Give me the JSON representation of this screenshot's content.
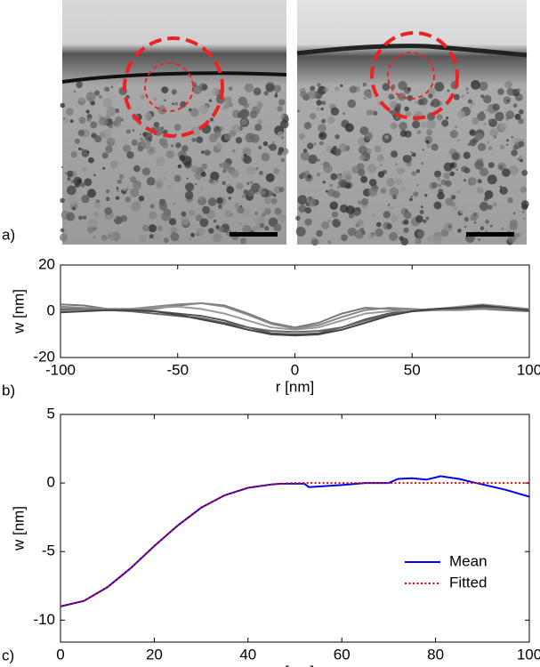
{
  "panel_labels": [
    "a)",
    "b)",
    "c)"
  ],
  "chart_data": [
    {
      "type": "line",
      "xlabel": "r [nm]",
      "ylabel": "w [nm]",
      "xlim": [
        -100,
        100
      ],
      "xticks": [
        -100,
        -50,
        0,
        50,
        100
      ],
      "ylim": [
        -20,
        20
      ],
      "yticks": [
        -20,
        0,
        20
      ],
      "x": [
        -100,
        -90,
        -80,
        -70,
        -60,
        -50,
        -40,
        -30,
        -20,
        -10,
        0,
        10,
        20,
        30,
        40,
        50,
        60,
        70,
        80,
        90,
        100
      ],
      "series": [
        {
          "color": "#777777",
          "values": [
            3,
            2.5,
            1,
            0.5,
            1,
            2.5,
            3.5,
            2.5,
            -1,
            -5,
            -7,
            -5,
            -1,
            1.5,
            1,
            0,
            0.5,
            1,
            1.5,
            1.5,
            1
          ]
        },
        {
          "color": "#555555",
          "values": [
            0.5,
            0.5,
            0.5,
            0.5,
            0,
            -1,
            -2,
            -4,
            -7,
            -9.5,
            -10,
            -9.5,
            -7,
            -3.5,
            -1,
            0.5,
            1,
            1.5,
            2,
            1.5,
            0.5
          ]
        },
        {
          "color": "#999999",
          "values": [
            0,
            0.5,
            1,
            1,
            1.5,
            2,
            1,
            -1,
            -4,
            -7,
            -8,
            -7,
            -4,
            -1,
            0,
            0.5,
            1,
            2,
            3,
            2,
            1
          ]
        },
        {
          "color": "#666666",
          "values": [
            1,
            1,
            0.5,
            0,
            -1,
            -2,
            -3,
            -5,
            -7,
            -8.5,
            -9,
            -8.5,
            -7,
            -4,
            -1.5,
            0,
            1,
            1.5,
            1,
            0.5,
            0
          ]
        },
        {
          "color": "#888888",
          "values": [
            2,
            1.5,
            1,
            1,
            2,
            3,
            3.5,
            2,
            -1.5,
            -5.5,
            -7.5,
            -6,
            -2.5,
            0.5,
            1.5,
            1,
            0.5,
            0.5,
            1,
            1,
            0.5
          ]
        },
        {
          "color": "#444444",
          "values": [
            -0.5,
            0,
            0.5,
            0.5,
            0,
            -1.5,
            -3.5,
            -5.5,
            -8,
            -10,
            -10.5,
            -10,
            -8,
            -5,
            -2,
            0,
            1,
            1.5,
            2.5,
            1.5,
            0.5
          ]
        }
      ]
    },
    {
      "type": "line",
      "xlabel": "r [nm]",
      "ylabel": "w [nm]",
      "xlim": [
        0,
        100
      ],
      "xticks": [
        0,
        20,
        40,
        60,
        80,
        100
      ],
      "ylim": [
        -11.6,
        5
      ],
      "yticks": [
        -10,
        -5,
        0,
        5
      ],
      "legend": "lower right",
      "series": [
        {
          "name": "Mean",
          "color": "#0000ee",
          "style": "solid",
          "x": [
            0,
            5,
            10,
            15,
            20,
            25,
            30,
            35,
            40,
            45,
            47,
            52,
            53,
            60,
            65,
            70,
            72,
            75,
            78,
            80,
            81,
            85,
            88,
            90,
            95,
            100
          ],
          "values": [
            -9,
            -8.6,
            -7.6,
            -6.2,
            -4.6,
            -3.1,
            -1.8,
            -0.9,
            -0.35,
            -0.1,
            -0.05,
            -0.05,
            -0.3,
            -0.15,
            0,
            0,
            0.3,
            0.35,
            0.25,
            0.4,
            0.5,
            0.3,
            0.05,
            -0.1,
            -0.5,
            -1
          ]
        },
        {
          "name": "Fitted",
          "color": "#e00000",
          "style": "dotted",
          "x": [
            0,
            5,
            10,
            15,
            20,
            25,
            30,
            35,
            40,
            45,
            50,
            60,
            70,
            80,
            90,
            100
          ],
          "values": [
            -9,
            -8.6,
            -7.6,
            -6.2,
            -4.6,
            -3.1,
            -1.8,
            -0.9,
            -0.35,
            -0.1,
            0,
            0,
            0,
            0,
            0,
            0
          ]
        }
      ]
    }
  ]
}
